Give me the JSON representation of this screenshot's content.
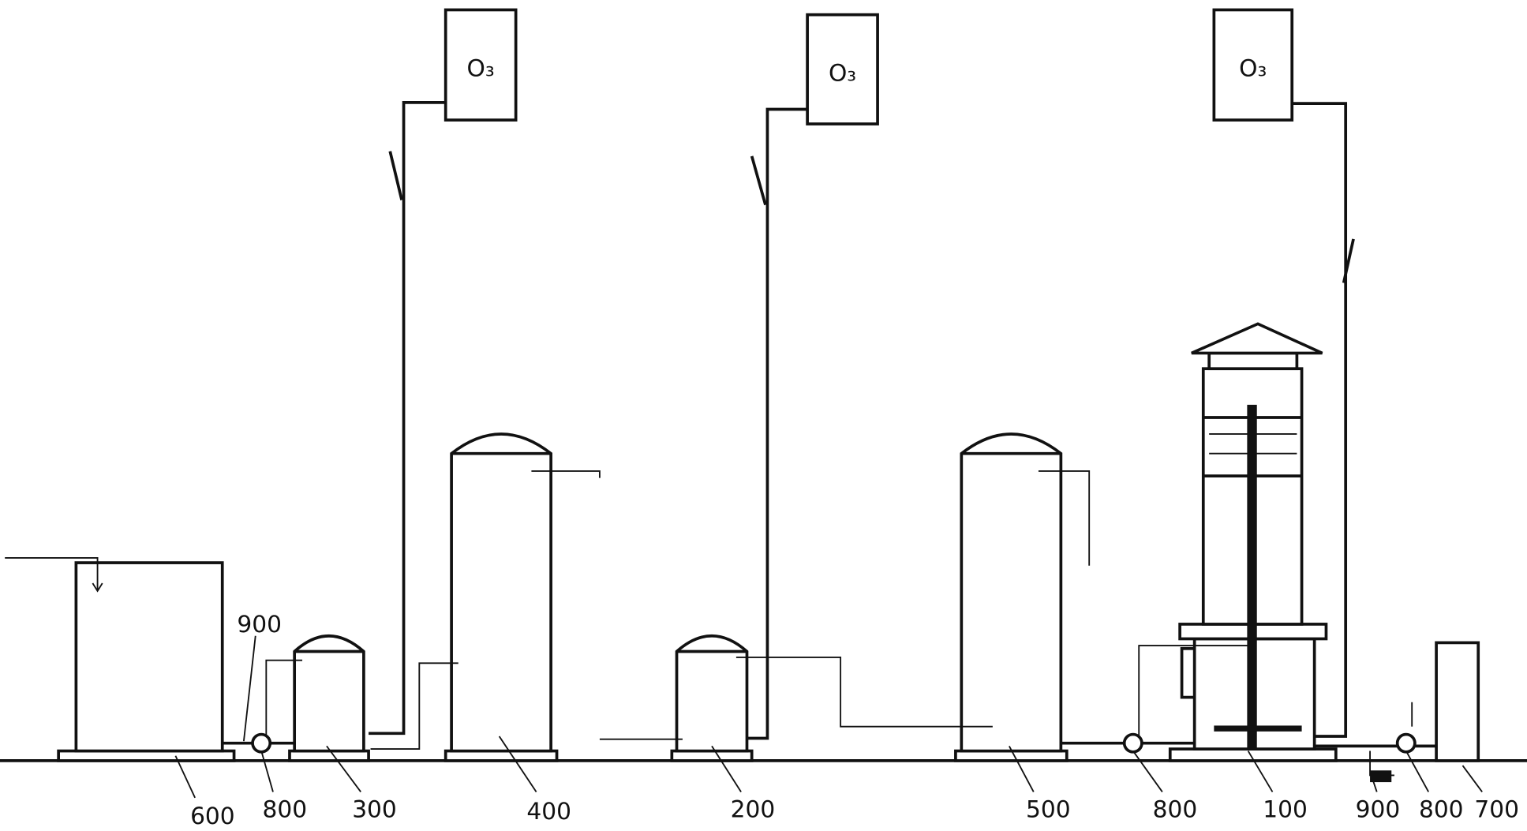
{
  "ozone_generators": [
    {
      "label": "O₃"
    },
    {
      "label": "O₃"
    },
    {
      "label": "O₃"
    }
  ],
  "callouts": [
    {
      "label": "900"
    },
    {
      "label": "600"
    },
    {
      "label": "800"
    },
    {
      "label": "300"
    },
    {
      "label": "400"
    },
    {
      "label": "200"
    },
    {
      "label": "500"
    },
    {
      "label": "800"
    },
    {
      "label": "100"
    },
    {
      "label": "900"
    },
    {
      "label": "800"
    },
    {
      "label": "700"
    }
  ]
}
